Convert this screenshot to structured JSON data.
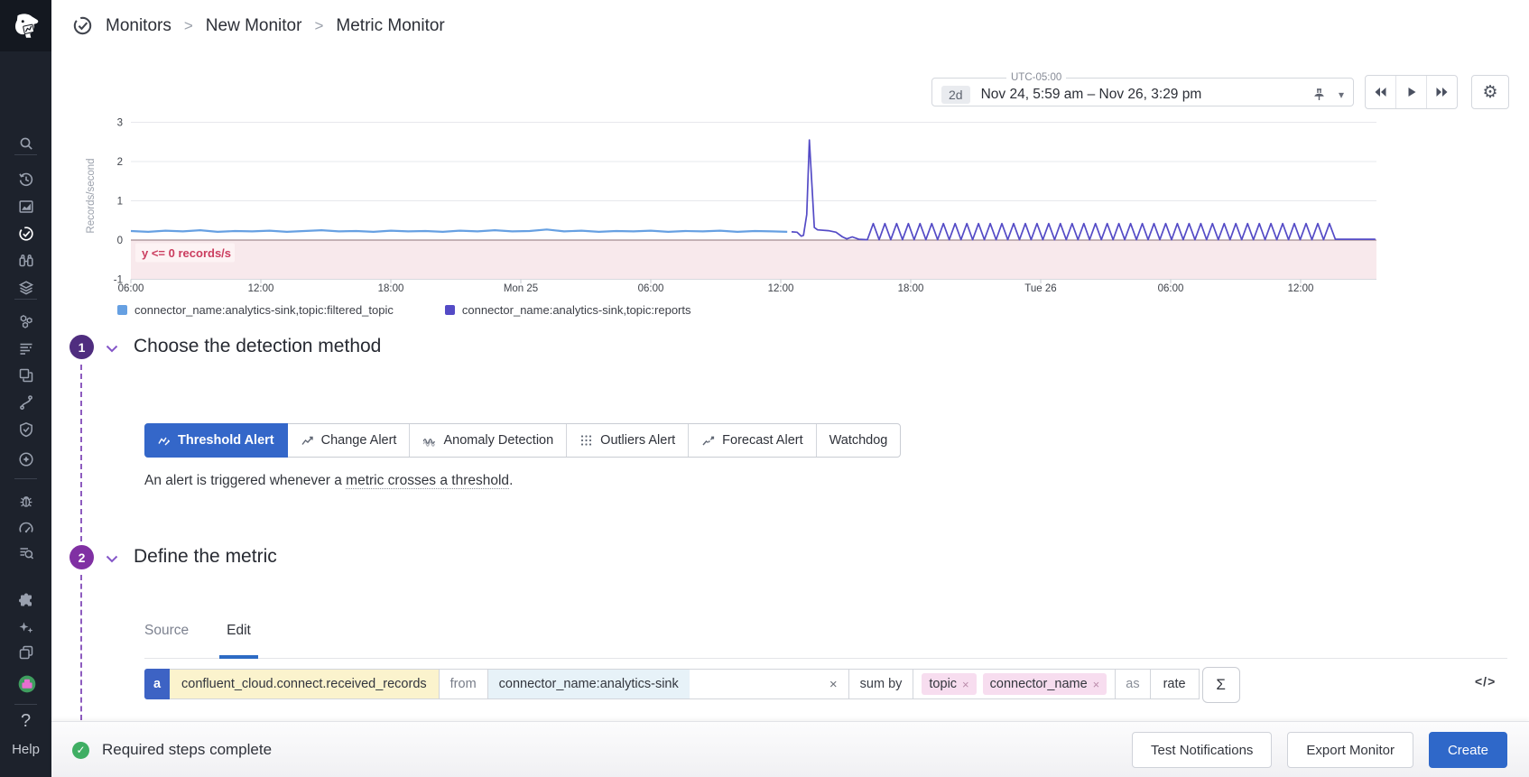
{
  "breadcrumb": {
    "separator": ">",
    "items": [
      "Monitors",
      "New Monitor",
      "Metric Monitor"
    ]
  },
  "time_controls": {
    "timezone": "UTC-05:00",
    "interval": "2d",
    "range": "Nov 24, 5:59 am – Nov 26, 3:29 pm",
    "chevron_icon": "▾",
    "gear_icon": "⚙"
  },
  "chart_data": {
    "type": "line",
    "ylabel": "Records/second",
    "ylim": [
      -1,
      3.4
    ],
    "y_ticks": [
      -1,
      0,
      1,
      2,
      3
    ],
    "x_range_hours": [
      0,
      57.5
    ],
    "x_start": "Nov 24 06:00 (UTC-05:00)",
    "x_ticks": [
      {
        "pos": 0,
        "label": "06:00"
      },
      {
        "pos": 6,
        "label": "12:00"
      },
      {
        "pos": 12,
        "label": "18:00"
      },
      {
        "pos": 18,
        "label": "Mon 25"
      },
      {
        "pos": 24,
        "label": "06:00"
      },
      {
        "pos": 30,
        "label": "12:00"
      },
      {
        "pos": 36,
        "label": "18:00"
      },
      {
        "pos": 42,
        "label": "Tue 26"
      },
      {
        "pos": 48,
        "label": "06:00"
      },
      {
        "pos": 54,
        "label": "12:00"
      }
    ],
    "grid": true,
    "legend_position": "bottom",
    "threshold_zone": {
      "label": "y <= 0 records/s",
      "condition": "y <= 0",
      "from": 0,
      "to": -1,
      "fill": "#f8e9ec",
      "edge": "#8d7279",
      "chip_fill": "#fdf3f4",
      "text_color": "#cb3d5f"
    },
    "series": [
      {
        "name": "connector_name:analytics-sink,topic:filtered_topic",
        "color": "#66a0e2",
        "segments": [
          {
            "type": "points",
            "points": [
              [
                0,
                0.23
              ],
              [
                0.8,
                0.21
              ],
              [
                1.6,
                0.24
              ],
              [
                2.4,
                0.22
              ],
              [
                3.2,
                0.25
              ],
              [
                4,
                0.21
              ],
              [
                4.8,
                0.23
              ],
              [
                5.6,
                0.22
              ],
              [
                6.4,
                0.24
              ],
              [
                7.2,
                0.21
              ],
              [
                8,
                0.23
              ],
              [
                8.8,
                0.25
              ],
              [
                9.6,
                0.22
              ],
              [
                10.4,
                0.23
              ],
              [
                11.2,
                0.21
              ],
              [
                12,
                0.24
              ],
              [
                12.8,
                0.22
              ],
              [
                13.6,
                0.23
              ],
              [
                14.4,
                0.21
              ],
              [
                15.2,
                0.24
              ],
              [
                16,
                0.22
              ],
              [
                16.8,
                0.25
              ],
              [
                17.6,
                0.22
              ],
              [
                18.4,
                0.23
              ],
              [
                19.2,
                0.27
              ],
              [
                20,
                0.22
              ],
              [
                20.8,
                0.24
              ],
              [
                21.6,
                0.21
              ],
              [
                22.4,
                0.23
              ],
              [
                23.2,
                0.22
              ],
              [
                24,
                0.24
              ],
              [
                24.8,
                0.21
              ],
              [
                25.6,
                0.23
              ],
              [
                26.4,
                0.22
              ],
              [
                27.2,
                0.24
              ],
              [
                28,
                0.21
              ],
              [
                28.8,
                0.23
              ],
              [
                29.6,
                0.22
              ],
              [
                30.3,
                0.21
              ]
            ]
          }
        ]
      },
      {
        "name": "connector_name:analytics-sink,topic:reports",
        "color": "#544bc6",
        "segments": [
          {
            "type": "points",
            "points": [
              [
                30.5,
                0.21
              ],
              [
                30.75,
                0.2
              ],
              [
                30.95,
                0.1
              ],
              [
                31.05,
                0.12
              ],
              [
                31.2,
                0.65
              ],
              [
                31.32,
                2.55
              ],
              [
                31.45,
                1.3
              ],
              [
                31.55,
                0.32
              ],
              [
                31.7,
                0.26
              ],
              [
                32.2,
                0.24
              ],
              [
                32.55,
                0.2
              ],
              [
                32.85,
                0.08
              ],
              [
                33.05,
                0.03
              ],
              [
                33.3,
                0.08
              ],
              [
                33.6,
                0.02
              ],
              [
                34.0,
                0.01
              ]
            ]
          },
          {
            "type": "zigzag",
            "from": 34.0,
            "to": 55.55,
            "period": 0.54,
            "low": 0.01,
            "high": 0.42
          },
          {
            "type": "points",
            "points": [
              [
                55.6,
                0.02
              ],
              [
                57.45,
                0.02
              ]
            ]
          }
        ]
      }
    ]
  },
  "steps": [
    {
      "number": "1",
      "title": "Choose the detection method",
      "tabs": [
        {
          "label": "Threshold Alert",
          "icon": "threshold-chart-icon",
          "selected": true
        },
        {
          "label": "Change Alert",
          "icon": "change-chart-icon",
          "selected": false
        },
        {
          "label": "Anomaly Detection",
          "icon": "anomaly-wave-icon",
          "selected": false
        },
        {
          "label": "Outliers Alert",
          "icon": "outliers-dots-icon",
          "selected": false
        },
        {
          "label": "Forecast Alert",
          "icon": "forecast-arrow-icon",
          "selected": false
        },
        {
          "label": "Watchdog",
          "icon": null,
          "selected": false
        }
      ],
      "description_prefix": "An alert is triggered whenever a ",
      "description_link": "metric crosses a threshold",
      "description_suffix": "."
    },
    {
      "number": "2",
      "title": "Define the metric",
      "subtabs": [
        {
          "label": "Source",
          "selected": false
        },
        {
          "label": "Edit",
          "selected": true
        }
      ],
      "query": {
        "letter": "a",
        "metric": "confluent_cloud.connect.received_records",
        "from_label": "from",
        "filter": "connector_name:analytics-sink",
        "close_icon": "×",
        "sum_by_label": "sum by",
        "group_tags": [
          "topic",
          "connector_name"
        ],
        "as_label": "as",
        "rollup": "rate",
        "aggregator_symbol": "Σ",
        "code_toggle": "</>"
      }
    }
  ],
  "footer": {
    "check_icon": "✓",
    "status_label": "Required steps complete",
    "secondary_buttons": [
      "Test Notifications",
      "Export Monitor"
    ],
    "primary_button": "Create"
  },
  "sidebar": {
    "icons": [
      "search",
      "history",
      "metrics",
      "monitors",
      "watchdog",
      "infrastructure",
      "processes",
      "apm-traces",
      "ux-monitoring",
      "service-map",
      "security",
      "synthetics",
      "error-tracking",
      "ci-pipelines",
      "logs",
      "integrations",
      "ai-assistant",
      "workflows",
      "account-avatar"
    ],
    "help_icon": "?",
    "help_label": "Help"
  },
  "colors": {
    "accent_blue": "#3467c9",
    "primary_button": "#2f68c9",
    "step1_circle": "#4f2d7f",
    "step2_circle": "#8030a3",
    "connector_purple": "#8d5bbf",
    "metric_highlight": "#fbf3cd",
    "filter_highlight": "#e7f2f8",
    "tag_pink": "#f7ddef",
    "threshold_fill": "#f8e9ec",
    "threshold_text": "#cb3d5f",
    "success_green": "#3fae63",
    "sidebar_bg": "#1d222c"
  }
}
